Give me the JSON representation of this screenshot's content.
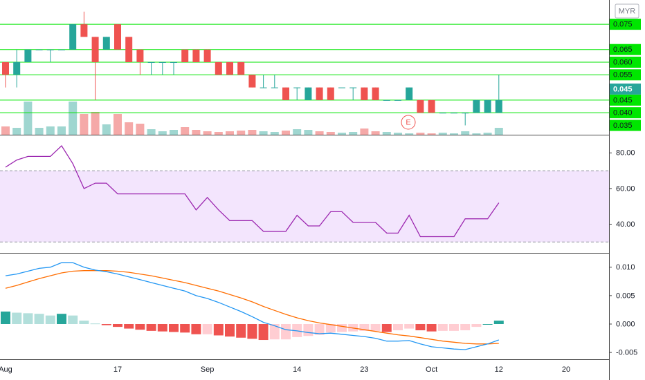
{
  "chart_data": [
    {
      "type": "candlestick",
      "currency": "MYR",
      "event_label": "E",
      "categories": [
        "Aug",
        null,
        null,
        null,
        null,
        null,
        null,
        null,
        null,
        null,
        "17",
        null,
        null,
        null,
        null,
        null,
        null,
        null,
        "Sep",
        null,
        null,
        null,
        null,
        null,
        null,
        null,
        "14",
        null,
        null,
        null,
        null,
        null,
        "23",
        null,
        null,
        null,
        null,
        null,
        "Oct",
        null,
        null,
        null,
        null,
        null,
        "12",
        null,
        null,
        null,
        null,
        null,
        "20"
      ],
      "open": [
        0.06,
        0.055,
        0.06,
        0.065,
        0.065,
        0.065,
        0.065,
        0.075,
        0.07,
        0.065,
        0.075,
        0.07,
        0.065,
        0.06,
        0.06,
        0.06,
        0.065,
        0.065,
        0.065,
        0.06,
        0.06,
        0.06,
        0.055,
        0.05,
        0.05,
        0.05,
        0.05,
        0.045,
        0.05,
        0.05,
        0.05,
        0.05,
        0.05,
        0.05,
        0.045,
        0.045,
        0.045,
        0.045,
        0.045,
        0.04,
        0.04,
        0.04,
        0.04,
        0.04,
        0.04,
        null,
        null,
        null,
        null,
        null,
        null
      ],
      "high": [
        0.06,
        0.065,
        0.065,
        0.065,
        0.065,
        0.065,
        0.075,
        0.08,
        0.07,
        0.07,
        0.075,
        0.07,
        0.065,
        0.06,
        0.06,
        0.06,
        0.065,
        0.065,
        0.065,
        0.06,
        0.06,
        0.06,
        0.055,
        0.055,
        0.055,
        0.05,
        0.05,
        0.05,
        0.05,
        0.05,
        0.05,
        0.05,
        0.05,
        0.05,
        0.045,
        0.045,
        0.05,
        0.045,
        0.045,
        0.04,
        0.04,
        0.04,
        0.045,
        0.045,
        0.055,
        null,
        null,
        null,
        null,
        null,
        null
      ],
      "low": [
        0.05,
        0.05,
        0.06,
        0.065,
        0.06,
        0.065,
        0.065,
        0.07,
        0.045,
        0.065,
        0.065,
        0.06,
        0.055,
        0.055,
        0.055,
        0.055,
        0.06,
        0.06,
        0.06,
        0.055,
        0.055,
        0.055,
        0.05,
        0.05,
        0.05,
        0.045,
        0.045,
        0.045,
        0.045,
        0.045,
        0.05,
        0.045,
        0.045,
        0.045,
        0.045,
        0.045,
        0.045,
        0.04,
        0.04,
        0.04,
        0.04,
        0.035,
        0.04,
        0.04,
        0.04,
        null,
        null,
        null,
        null,
        null,
        null
      ],
      "close": [
        0.055,
        0.06,
        0.065,
        0.065,
        0.065,
        0.065,
        0.075,
        0.07,
        0.06,
        0.07,
        0.065,
        0.06,
        0.06,
        0.06,
        0.06,
        0.06,
        0.06,
        0.06,
        0.06,
        0.055,
        0.055,
        0.055,
        0.05,
        0.05,
        0.05,
        0.045,
        0.05,
        0.05,
        0.045,
        0.045,
        0.05,
        0.05,
        0.045,
        0.045,
        0.045,
        0.045,
        0.05,
        0.04,
        0.04,
        0.04,
        0.04,
        0.04,
        0.045,
        0.045,
        0.045,
        null,
        null,
        null,
        null,
        null,
        null
      ],
      "volume": [
        24,
        20,
        96,
        20,
        24,
        24,
        96,
        60,
        66,
        30,
        60,
        36,
        32,
        16,
        10,
        14,
        22,
        14,
        10,
        8,
        10,
        12,
        14,
        10,
        8,
        12,
        16,
        14,
        10,
        8,
        6,
        8,
        18,
        10,
        8,
        6,
        4,
        6,
        4,
        6,
        4,
        10,
        4,
        6,
        20,
        null,
        null,
        null,
        null,
        null,
        null
      ],
      "vlim": [
        0,
        200
      ],
      "up_color": "#26a69a",
      "down_color": "#ef5350",
      "volume_up_color": "#9fd6d0",
      "volume_down_color": "#f5a9a8",
      "ylim": [
        0.0313,
        0.0846
      ],
      "yticks": [
        {
          "value": 0.035,
          "label": "0.035"
        }
      ],
      "price_lines": [
        {
          "value": 0.075,
          "label": "0.075"
        },
        {
          "value": 0.065,
          "label": "0.065"
        },
        {
          "value": 0.06,
          "label": "0.060"
        },
        {
          "value": 0.055,
          "label": "0.055"
        },
        {
          "value": 0.045,
          "label": "0.045"
        },
        {
          "value": 0.04,
          "label": "0.040"
        }
      ],
      "price_line_color": "#00e600",
      "last_price": {
        "value": 0.045,
        "label": "0.045"
      }
    },
    {
      "type": "line",
      "values": [
        72,
        76,
        78,
        78,
        78,
        84,
        74,
        60,
        63,
        63,
        57,
        57,
        57,
        57,
        57,
        57,
        57,
        48,
        55,
        48,
        42,
        42,
        42,
        36,
        36,
        36,
        45,
        39,
        39,
        47,
        47,
        41,
        41,
        41,
        35,
        35,
        45,
        33,
        33,
        33,
        33,
        43,
        43,
        43,
        52,
        null,
        null,
        null,
        null,
        null,
        null
      ],
      "color": "#9c27b0",
      "band": [
        30,
        70
      ],
      "band_color": "#f3e5fd",
      "ylim": [
        23.9,
        89.8
      ],
      "yticks": [
        {
          "value": 40,
          "label": "40.00"
        },
        {
          "value": 60,
          "label": "60.00"
        },
        {
          "value": 80,
          "label": "80.00"
        }
      ]
    },
    {
      "type": "macd",
      "macd": [
        0.0085,
        0.0088,
        0.0093,
        0.0098,
        0.01,
        0.0108,
        0.0108,
        0.01,
        0.0095,
        0.0092,
        0.0088,
        0.0083,
        0.0078,
        0.0073,
        0.0068,
        0.0063,
        0.0058,
        0.005,
        0.0045,
        0.0038,
        0.003,
        0.0022,
        0.0013,
        0.0003,
        -0.0003,
        -0.001,
        -0.0012,
        -0.0015,
        -0.0017,
        -0.0016,
        -0.0018,
        -0.002,
        -0.0022,
        -0.0025,
        -0.003,
        -0.003,
        -0.0029,
        -0.0035,
        -0.004,
        -0.0042,
        -0.0044,
        -0.0045,
        -0.004,
        -0.0035,
        -0.0028,
        null,
        null,
        null,
        null,
        null,
        null
      ],
      "signal": [
        0.0063,
        0.0068,
        0.0074,
        0.008,
        0.0085,
        0.009,
        0.0093,
        0.0094,
        0.0094,
        0.0094,
        0.0093,
        0.0091,
        0.0088,
        0.0085,
        0.0081,
        0.0077,
        0.0073,
        0.0068,
        0.0063,
        0.0058,
        0.0052,
        0.0046,
        0.0039,
        0.0031,
        0.0024,
        0.0017,
        0.0011,
        0.0006,
        0.0002,
        -0.0001,
        -0.0004,
        -0.0007,
        -0.001,
        -0.0013,
        -0.0016,
        -0.0019,
        -0.0021,
        -0.0024,
        -0.0027,
        -0.003,
        -0.0032,
        -0.0034,
        -0.0035,
        -0.0035,
        -0.0034,
        null,
        null,
        null,
        null,
        null,
        null
      ],
      "histogram": [
        0.0022,
        0.002,
        0.0019,
        0.0018,
        0.0015,
        0.0018,
        0.0015,
        0.0006,
        0.0001,
        -0.0002,
        -0.0005,
        -0.0008,
        -0.001,
        -0.0012,
        -0.0013,
        -0.0014,
        -0.0015,
        -0.0018,
        -0.0018,
        -0.002,
        -0.0022,
        -0.0024,
        -0.0026,
        -0.0028,
        -0.0027,
        -0.0027,
        -0.0023,
        -0.0021,
        -0.0019,
        -0.0015,
        -0.0014,
        -0.0013,
        -0.0012,
        -0.0012,
        -0.0014,
        -0.0011,
        -0.0008,
        -0.0011,
        -0.0013,
        -0.0012,
        -0.0012,
        -0.0011,
        -0.0005,
        0,
        0.0006,
        null,
        null,
        null,
        null,
        null,
        null
      ],
      "macd_color": "#2196f3",
      "signal_color": "#ff6d00",
      "histogram_colors": {
        "up_strong": "#26a69a",
        "up_weak": "#b2dfdb",
        "down_weak": "#ffcdd2",
        "down_strong": "#ef5350"
      },
      "ylim": [
        -0.0062,
        0.0124
      ],
      "yticks": [
        {
          "value": -0.005,
          "label": "-0.005"
        },
        {
          "value": 0,
          "label": "0.000"
        },
        {
          "value": 0.005,
          "label": "0.005"
        },
        {
          "value": 0.01,
          "label": "0.010"
        }
      ]
    }
  ]
}
